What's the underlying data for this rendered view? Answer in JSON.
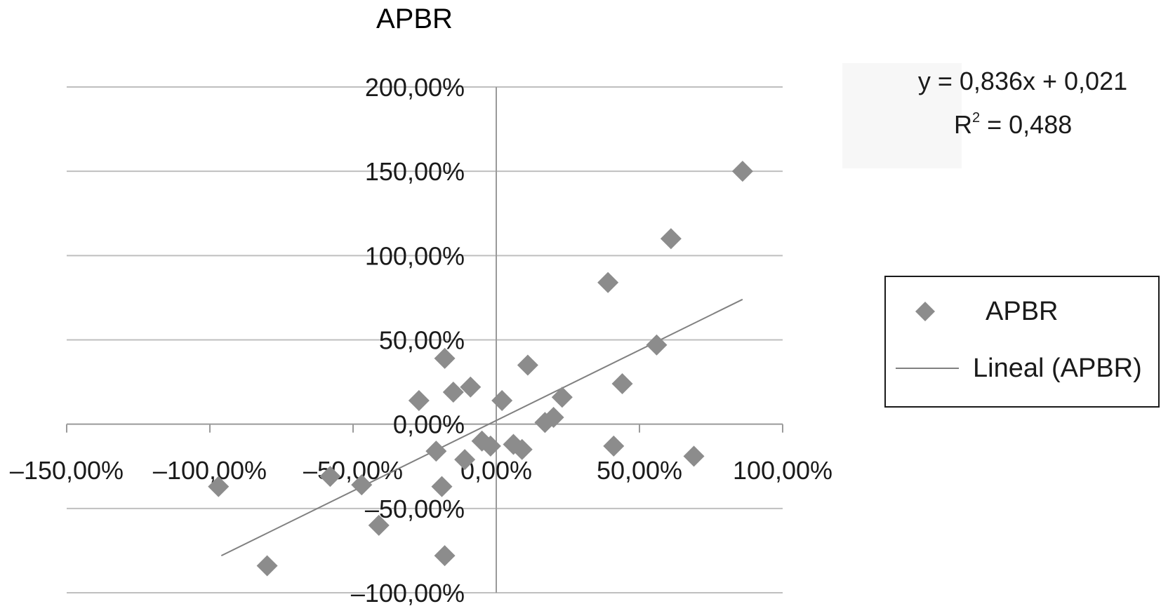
{
  "chart_data": {
    "type": "scatter",
    "title": "APBR",
    "xlim": [
      -1.5,
      1.0
    ],
    "ylim": [
      -1.0,
      2.0
    ],
    "x_ticks": [
      -1.5,
      -1.0,
      -0.5,
      0.0,
      0.5,
      1.0
    ],
    "x_tick_labels": [
      "–150,00%",
      "–100,00%",
      "–50,00%",
      "0,00%",
      "50,00%",
      "100,00%"
    ],
    "y_ticks": [
      -1.0,
      -0.5,
      0.0,
      0.5,
      1.0,
      1.5,
      2.0
    ],
    "y_tick_labels": [
      "–100,00%",
      "–50,00%",
      "0,00%",
      "50,00%",
      "100,00%",
      "150,00%",
      "200,00%"
    ],
    "grid": "horizontal",
    "legend_position": "right",
    "legend": [
      "APBR",
      "Lineal (APBR)"
    ],
    "marker_color": "#8c8c8c",
    "trendline_color": "#808080",
    "series": [
      {
        "name": "APBR",
        "points": [
          {
            "x": -0.97,
            "y": -0.37
          },
          {
            "x": -0.8,
            "y": -0.84
          },
          {
            "x": -0.58,
            "y": -0.31
          },
          {
            "x": -0.47,
            "y": -0.36
          },
          {
            "x": -0.41,
            "y": -0.6
          },
          {
            "x": -0.27,
            "y": 0.14
          },
          {
            "x": -0.21,
            "y": -0.16
          },
          {
            "x": -0.19,
            "y": -0.37
          },
          {
            "x": -0.18,
            "y": -0.78
          },
          {
            "x": -0.18,
            "y": 0.39
          },
          {
            "x": -0.15,
            "y": 0.19
          },
          {
            "x": -0.11,
            "y": -0.21
          },
          {
            "x": -0.09,
            "y": 0.22
          },
          {
            "x": -0.05,
            "y": -0.1
          },
          {
            "x": -0.02,
            "y": -0.13
          },
          {
            "x": 0.02,
            "y": 0.14
          },
          {
            "x": 0.06,
            "y": -0.12
          },
          {
            "x": 0.09,
            "y": -0.15
          },
          {
            "x": 0.11,
            "y": 0.35
          },
          {
            "x": 0.17,
            "y": 0.01
          },
          {
            "x": 0.2,
            "y": 0.04
          },
          {
            "x": 0.23,
            "y": 0.16
          },
          {
            "x": 0.39,
            "y": 0.84
          },
          {
            "x": 0.41,
            "y": -0.13
          },
          {
            "x": 0.44,
            "y": 0.24
          },
          {
            "x": 0.56,
            "y": 0.47
          },
          {
            "x": 0.61,
            "y": 1.1
          },
          {
            "x": 0.69,
            "y": -0.19
          },
          {
            "x": 0.86,
            "y": 1.5
          }
        ]
      },
      {
        "name": "Lineal (APBR)",
        "type": "trendline",
        "x": [
          -0.96,
          0.86
        ],
        "y": [
          -0.78,
          0.74
        ]
      }
    ],
    "trendline_equation": "y = 0,836x + 0,021",
    "r_squared_prefix": "R",
    "r_squared_exp": "2",
    "r_squared_value": " = 0,488"
  }
}
